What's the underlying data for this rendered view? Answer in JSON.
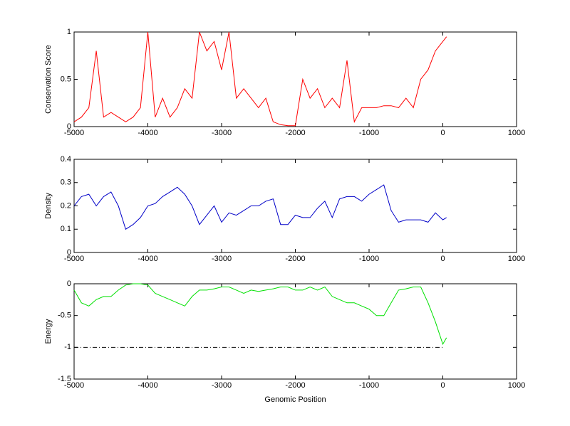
{
  "chart_data": [
    {
      "type": "line",
      "y_label": "Conservation Score",
      "color": "#ff0000",
      "x": [
        -5000,
        -4900,
        -4800,
        -4700,
        -4600,
        -4500,
        -4400,
        -4300,
        -4200,
        -4100,
        -4000,
        -3900,
        -3800,
        -3700,
        -3600,
        -3500,
        -3400,
        -3300,
        -3200,
        -3100,
        -3000,
        -2900,
        -2800,
        -2700,
        -2600,
        -2500,
        -2400,
        -2300,
        -2200,
        -2100,
        -2000,
        -1900,
        -1800,
        -1700,
        -1600,
        -1500,
        -1400,
        -1300,
        -1200,
        -1100,
        -1000,
        -900,
        -800,
        -700,
        -600,
        -500,
        -400,
        -300,
        -200,
        -100,
        0,
        50
      ],
      "values": [
        0.05,
        0.1,
        0.2,
        0.8,
        0.1,
        0.15,
        0.1,
        0.05,
        0.1,
        0.2,
        1.0,
        0.1,
        0.3,
        0.1,
        0.2,
        0.4,
        0.3,
        1.0,
        0.8,
        0.9,
        0.6,
        1.0,
        0.3,
        0.4,
        0.3,
        0.2,
        0.3,
        0.05,
        0.02,
        0.01,
        0.01,
        0.5,
        0.3,
        0.4,
        0.2,
        0.3,
        0.2,
        0.7,
        0.05,
        0.2,
        0.2,
        0.2,
        0.22,
        0.22,
        0.2,
        0.3,
        0.2,
        0.5,
        0.6,
        0.8,
        0.9,
        0.95
      ],
      "xlim": [
        -5000,
        1000
      ],
      "xticks": [
        -5000,
        -4000,
        -3000,
        -2000,
        -1000,
        0,
        1000
      ],
      "ylim": [
        0,
        1
      ],
      "yticks": [
        0,
        0.5,
        1
      ]
    },
    {
      "type": "line",
      "y_label": "Density",
      "color": "#0000c8",
      "x": [
        -5000,
        -4900,
        -4800,
        -4700,
        -4600,
        -4500,
        -4400,
        -4300,
        -4200,
        -4100,
        -4000,
        -3900,
        -3800,
        -3700,
        -3600,
        -3500,
        -3400,
        -3300,
        -3200,
        -3100,
        -3000,
        -2900,
        -2800,
        -2700,
        -2600,
        -2500,
        -2400,
        -2300,
        -2200,
        -2100,
        -2000,
        -1900,
        -1800,
        -1700,
        -1600,
        -1500,
        -1400,
        -1300,
        -1200,
        -1100,
        -1000,
        -900,
        -800,
        -700,
        -600,
        -500,
        -400,
        -300,
        -200,
        -100,
        0,
        50
      ],
      "values": [
        0.2,
        0.24,
        0.25,
        0.2,
        0.24,
        0.26,
        0.2,
        0.1,
        0.12,
        0.15,
        0.2,
        0.21,
        0.24,
        0.26,
        0.28,
        0.25,
        0.2,
        0.12,
        0.16,
        0.2,
        0.13,
        0.17,
        0.16,
        0.18,
        0.2,
        0.2,
        0.22,
        0.23,
        0.12,
        0.12,
        0.16,
        0.15,
        0.15,
        0.19,
        0.22,
        0.15,
        0.23,
        0.24,
        0.24,
        0.22,
        0.25,
        0.27,
        0.29,
        0.18,
        0.13,
        0.14,
        0.14,
        0.14,
        0.13,
        0.17,
        0.14,
        0.15
      ],
      "xlim": [
        -5000,
        1000
      ],
      "xticks": [
        -5000,
        -4000,
        -3000,
        -2000,
        -1000,
        0,
        1000
      ],
      "ylim": [
        0,
        0.4
      ],
      "yticks": [
        0,
        0.1,
        0.2,
        0.3,
        0.4
      ]
    },
    {
      "type": "line",
      "y_label": "Energy",
      "x_label": "Genomic Position",
      "color": "#00e000",
      "x": [
        -5000,
        -4900,
        -4800,
        -4700,
        -4600,
        -4500,
        -4400,
        -4300,
        -4200,
        -4100,
        -4000,
        -3900,
        -3800,
        -3700,
        -3600,
        -3500,
        -3400,
        -3300,
        -3200,
        -3100,
        -3000,
        -2900,
        -2800,
        -2700,
        -2600,
        -2500,
        -2400,
        -2300,
        -2200,
        -2100,
        -2000,
        -1900,
        -1800,
        -1700,
        -1600,
        -1500,
        -1400,
        -1300,
        -1200,
        -1100,
        -1000,
        -900,
        -800,
        -700,
        -600,
        -500,
        -400,
        -300,
        -200,
        -100,
        0,
        50
      ],
      "values": [
        -0.1,
        -0.3,
        -0.35,
        -0.25,
        -0.2,
        -0.2,
        -0.1,
        -0.02,
        0,
        0,
        -0.02,
        -0.15,
        -0.2,
        -0.25,
        -0.3,
        -0.35,
        -0.2,
        -0.1,
        -0.1,
        -0.08,
        -0.05,
        -0.05,
        -0.1,
        -0.15,
        -0.1,
        -0.12,
        -0.1,
        -0.08,
        -0.05,
        -0.05,
        -0.1,
        -0.1,
        -0.05,
        -0.1,
        -0.05,
        -0.2,
        -0.25,
        -0.3,
        -0.3,
        -0.35,
        -0.4,
        -0.5,
        -0.5,
        -0.3,
        -0.1,
        -0.08,
        -0.05,
        -0.05,
        -0.3,
        -0.6,
        -0.95,
        -0.85
      ],
      "reference_line": {
        "value": -1,
        "x": [
          -5000,
          0
        ],
        "color": "#000000"
      },
      "xlim": [
        -5000,
        1000
      ],
      "xticks": [
        -5000,
        -4000,
        -3000,
        -2000,
        -1000,
        0,
        1000
      ],
      "ylim": [
        -1.5,
        0
      ],
      "yticks": [
        -1.5,
        -1,
        -0.5,
        0
      ]
    }
  ]
}
